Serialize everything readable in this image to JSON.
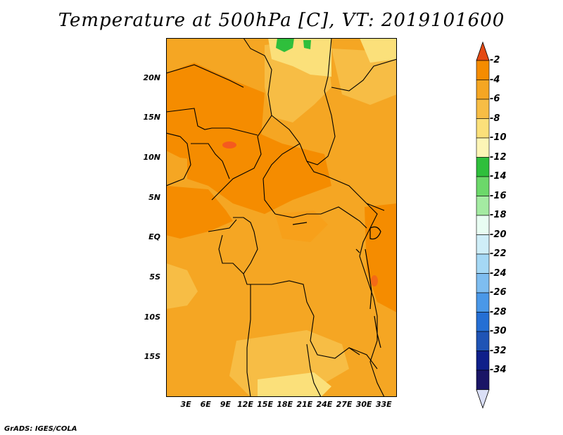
{
  "title": "Temperature at 500hPa [C], VT: 2019101600",
  "credit": "GrADS: IGES/COLA",
  "y_ticks": [
    {
      "label": "20N",
      "lat": 20
    },
    {
      "label": "15N",
      "lat": 15
    },
    {
      "label": "10N",
      "lat": 10
    },
    {
      "label": "5N",
      "lat": 5
    },
    {
      "label": "EQ",
      "lat": 0
    },
    {
      "label": "5S",
      "lat": -5
    },
    {
      "label": "10S",
      "lat": -10
    },
    {
      "label": "15S",
      "lat": -15
    }
  ],
  "x_ticks": [
    {
      "label": "3E",
      "lon": 3
    },
    {
      "label": "6E",
      "lon": 6
    },
    {
      "label": "9E",
      "lon": 9
    },
    {
      "label": "12E",
      "lon": 12
    },
    {
      "label": "15E",
      "lon": 15
    },
    {
      "label": "18E",
      "lon": 18
    },
    {
      "label": "21E",
      "lon": 21
    },
    {
      "label": "24E",
      "lon": 24
    },
    {
      "label": "27E",
      "lon": 27
    },
    {
      "label": "30E",
      "lon": 30
    },
    {
      "label": "33E",
      "lon": 33
    }
  ],
  "colorbar": {
    "labels": [
      "-2",
      "-4",
      "-6",
      "-8",
      "-10",
      "-12",
      "-14",
      "-16",
      "-18",
      "-20",
      "-22",
      "-24",
      "-26",
      "-28",
      "-30",
      "-32",
      "-34"
    ],
    "colors": [
      "#f55a1e",
      "#f58c00",
      "#f5a623",
      "#f7bd45",
      "#fbe07a",
      "#fdf5b6",
      "#2fbf3c",
      "#6cd86a",
      "#a4eba2",
      "#e8fdf2",
      "#cfeef8",
      "#a5d8f5",
      "#7ebdf0",
      "#4a98e8",
      "#256fd4",
      "#1f54b5",
      "#0e1f8a",
      "#1a1566"
    ],
    "top_arrow": "#e44a14",
    "bottom_arrow": "#dadff6"
  },
  "map": {
    "lon_range": [
      0,
      35
    ],
    "lat_range": [
      -20,
      25
    ],
    "dominant_band": "-6",
    "features": "country borders, Lake Victoria, Lake Tanganyika, Lake Malawi"
  }
}
